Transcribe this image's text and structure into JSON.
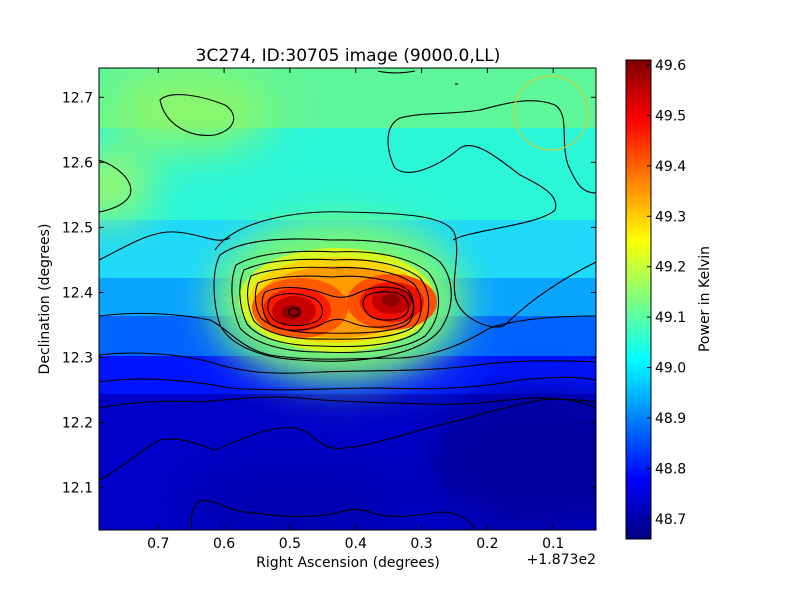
{
  "chart_data": {
    "type": "heatmap",
    "title": "3C274, ID:30705 image (9000.0,LL)",
    "xlabel": "Right Ascension (degrees)",
    "ylabel": "Declination (degrees)",
    "x_offset_label": "+1.873e2",
    "x_ticks": [
      "0.7",
      "0.6",
      "0.5",
      "0.4",
      "0.3",
      "0.2",
      "0.1"
    ],
    "x_tick_values": [
      0.7,
      0.6,
      0.5,
      0.4,
      0.3,
      0.2,
      0.1
    ],
    "xlim": [
      0.79,
      0.035
    ],
    "y_ticks": [
      "12.1",
      "12.2",
      "12.3",
      "12.4",
      "12.5",
      "12.6",
      "12.7"
    ],
    "y_tick_values": [
      12.1,
      12.2,
      12.3,
      12.4,
      12.5,
      12.6,
      12.7
    ],
    "ylim": [
      12.035,
      12.745
    ],
    "colorbar": {
      "label": "Power in Kelvin",
      "ticks": [
        "48.7",
        "48.8",
        "48.9",
        "49.0",
        "49.1",
        "49.2",
        "49.3",
        "49.4",
        "49.5",
        "49.6"
      ],
      "tick_values": [
        48.7,
        48.8,
        48.9,
        49.0,
        49.1,
        49.2,
        49.3,
        49.4,
        49.5,
        49.6
      ],
      "range": [
        48.66,
        49.61
      ],
      "colormap": "jet"
    },
    "peaks": [
      {
        "ra": 0.485,
        "dec": 12.37,
        "value": 49.58
      },
      {
        "ra": 0.34,
        "dec": 12.382,
        "value": 49.55
      }
    ],
    "beam_circle": {
      "ra": 0.095,
      "dec": 12.675,
      "color": "#c8d23c"
    },
    "grid": false
  }
}
